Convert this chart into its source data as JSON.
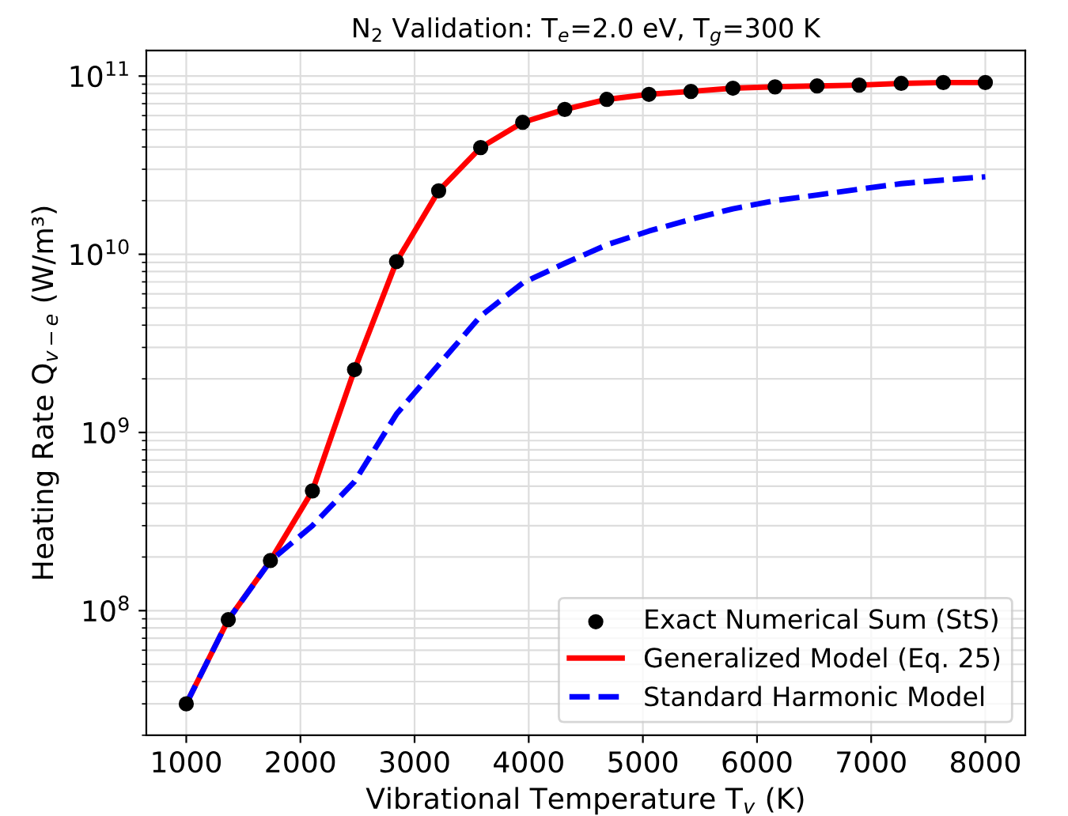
{
  "chart_data": {
    "type": "line",
    "title": "N$_{2}$ Validation: T$_{e}$=2.0 eV, T$_{g}$=300 K",
    "xlabel": "Vibrational Temperature T$_{v}$ (K)",
    "ylabel": "Heating Rate Q$_{v−e}$ (W/m³)",
    "x": [
      1000,
      1368,
      1737,
      2105,
      2474,
      2842,
      3211,
      3579,
      3947,
      4316,
      4684,
      5053,
      5421,
      5789,
      6158,
      6526,
      6895,
      7263,
      7632,
      8000
    ],
    "series": [
      {
        "name": "Exact Numerical Sum (StS)",
        "type": "scatter",
        "color": "#000000",
        "marker": "circle",
        "values": [
          30000000.0,
          89000000.0,
          191000000.0,
          470000000.0,
          2250000000.0,
          9100000000.0,
          22700000000.0,
          39700000000.0,
          55000000000.0,
          65000000000.0,
          74000000000.0,
          79000000000.0,
          82000000000.0,
          85500000000.0,
          87000000000.0,
          88000000000.0,
          89000000000.0,
          91000000000.0,
          92000000000.0,
          92000000000.0
        ]
      },
      {
        "name": "Generalized Model (Eq. 25)",
        "color": "#ff0000",
        "line_style": "solid",
        "values": [
          30000000.0,
          89000000.0,
          191000000.0,
          470000000.0,
          2250000000.0,
          9100000000.0,
          22700000000.0,
          39700000000.0,
          55000000000.0,
          65000000000.0,
          74000000000.0,
          79000000000.0,
          82000000000.0,
          85500000000.0,
          87000000000.0,
          88000000000.0,
          89000000000.0,
          91000000000.0,
          92000000000.0,
          92000000000.0
        ]
      },
      {
        "name": "Standard Harmonic Model",
        "color": "#0000ff",
        "line_style": "dashed",
        "values": [
          30000000.0,
          89000000.0,
          190000000.0,
          300000000.0,
          530000000.0,
          1270000000.0,
          2400000000.0,
          4500000000.0,
          6900000000.0,
          8900000000.0,
          11300000000.0,
          13500000000.0,
          15700000000.0,
          18000000000.0,
          20000000000.0,
          21500000000.0,
          23200000000.0,
          24900000000.0,
          26100000000.0,
          27200000000.0
        ]
      }
    ],
    "log": "y",
    "xlim": [
      650,
      8350
    ],
    "ylim": [
      20000000.0,
      139000000000.0
    ],
    "xticks": [
      1000,
      2000,
      3000,
      4000,
      5000,
      6000,
      7000,
      8000
    ],
    "yticks": [
      {
        "value": 100000000.0,
        "label": "10$^{8}$"
      },
      {
        "value": 1000000000.0,
        "label": "10$^{9}$"
      },
      {
        "value": 10000000000.0,
        "label": "10$^{10}$"
      },
      {
        "value": 100000000000.0,
        "label": "10$^{11}$"
      }
    ],
    "grid": true,
    "legend": "bottom right"
  }
}
